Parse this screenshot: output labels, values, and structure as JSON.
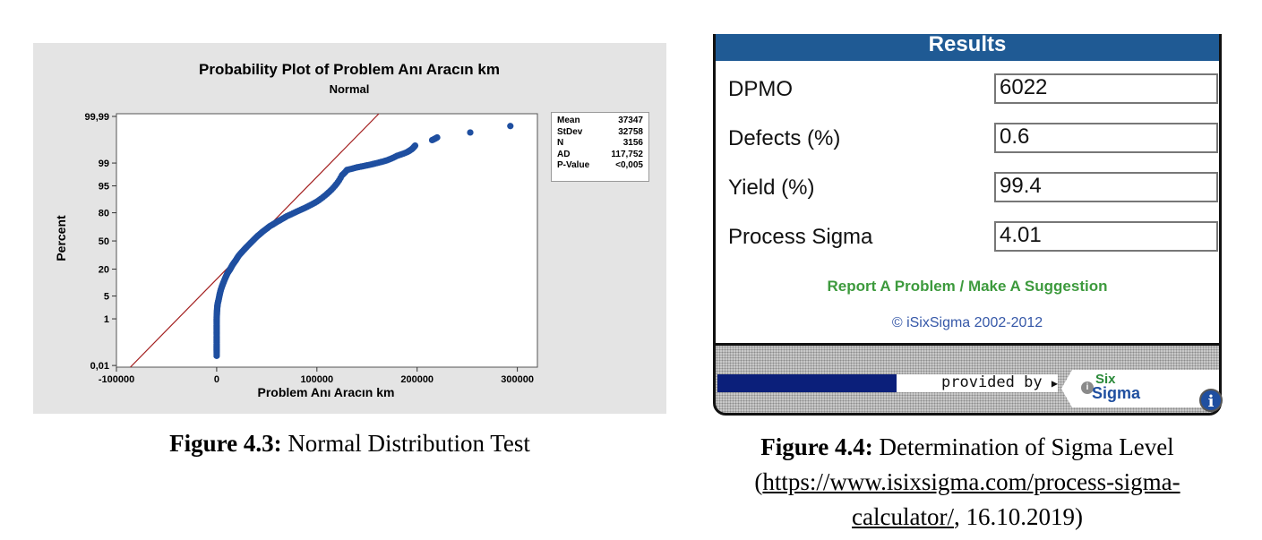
{
  "chart_data": {
    "type": "scatter",
    "title": "Probability Plot of Problem Anı Aracın km",
    "subtitle": "Normal",
    "xlabel": "Problem Anı Aracın km",
    "ylabel": "Percent",
    "xlim": [
      -100000,
      320000
    ],
    "ylim": [
      0.01,
      99.99
    ],
    "y_scale": "normal-probability",
    "x_ticks": [
      {
        "value": -100000,
        "label": "-100000"
      },
      {
        "value": 0,
        "label": "0"
      },
      {
        "value": 100000,
        "label": "100000"
      },
      {
        "value": 200000,
        "label": "200000"
      },
      {
        "value": 300000,
        "label": "300000"
      }
    ],
    "y_ticks": [
      {
        "value": 0.01,
        "label": "0,01"
      },
      {
        "value": 1,
        "label": "1"
      },
      {
        "value": 5,
        "label": "5"
      },
      {
        "value": 20,
        "label": "20"
      },
      {
        "value": 50,
        "label": "50"
      },
      {
        "value": 80,
        "label": "80"
      },
      {
        "value": 95,
        "label": "95"
      },
      {
        "value": 99,
        "label": "99"
      },
      {
        "value": 99.99,
        "label": "99,99"
      }
    ],
    "fit_line": {
      "mean": 37347,
      "stdev": 32758
    },
    "points": [
      [
        0,
        0.03
      ],
      [
        0,
        0.06
      ],
      [
        0,
        0.1
      ],
      [
        0,
        0.2
      ],
      [
        0,
        0.35
      ],
      [
        0,
        0.6
      ],
      [
        0,
        1
      ],
      [
        200,
        1.5
      ],
      [
        500,
        2.2
      ],
      [
        1000,
        3
      ],
      [
        2000,
        4
      ],
      [
        3000,
        5.5
      ],
      [
        4000,
        7
      ],
      [
        5500,
        9
      ],
      [
        7000,
        11
      ],
      [
        9000,
        14
      ],
      [
        11000,
        17
      ],
      [
        13500,
        20
      ],
      [
        16000,
        24
      ],
      [
        19000,
        28
      ],
      [
        22000,
        33
      ],
      [
        26000,
        38
      ],
      [
        30000,
        43
      ],
      [
        35000,
        49
      ],
      [
        40000,
        55
      ],
      [
        46000,
        61
      ],
      [
        53000,
        67
      ],
      [
        61000,
        72
      ],
      [
        70000,
        77
      ],
      [
        80000,
        81
      ],
      [
        90000,
        84.5
      ],
      [
        100000,
        88
      ],
      [
        110000,
        92
      ],
      [
        118000,
        95
      ],
      [
        125000,
        97.5
      ],
      [
        130000,
        98.3
      ],
      [
        140000,
        98.6
      ],
      [
        150000,
        98.8
      ],
      [
        160000,
        99.0
      ],
      [
        170000,
        99.2
      ],
      [
        180000,
        99.45
      ],
      [
        190000,
        99.6
      ],
      [
        195000,
        99.7
      ],
      [
        198000,
        99.78
      ],
      [
        215000,
        99.87
      ],
      [
        220000,
        99.9
      ],
      [
        253000,
        99.94
      ],
      [
        293000,
        99.97
      ]
    ],
    "legend_position": "right",
    "stats": [
      {
        "label": "Mean",
        "value": "37347"
      },
      {
        "label": "StDev",
        "value": "32758"
      },
      {
        "label": "N",
        "value": "3156"
      },
      {
        "label": "AD",
        "value": "117,752"
      },
      {
        "label": "P-Value",
        "value": "<0,005"
      }
    ],
    "colors": {
      "points": "#1f4fa0",
      "fit_line": "#a31f1f",
      "background": "#e4e4e4",
      "plot_area": "#ffffff"
    }
  },
  "figure_left_caption": {
    "label": "Figure 4.3:",
    "text": " Normal Distribution Test"
  },
  "calculator": {
    "header": "Results",
    "rows": [
      {
        "label": "DPMO",
        "value": "6022"
      },
      {
        "label": "Defects (%)",
        "value": "0.6"
      },
      {
        "label": "Yield (%)",
        "value": "99.4"
      },
      {
        "label": "Process Sigma",
        "value": "4.01"
      }
    ],
    "report_link": "Report A Problem / Make A Suggestion",
    "copyright": "© iSixSigma 2002-2012",
    "provided_by": "provided by",
    "logo_six": "Six",
    "logo_sigma": "Sigma",
    "logo_i": "i",
    "info_icon": "i"
  },
  "figure_right_caption": {
    "label": "Figure 4.4:",
    "text": " Determination of Sigma Level",
    "open_paren": "(",
    "link": "https://www.isixsigma.com/process-sigma-calculator/",
    "after_link": ", 16.10.2019)"
  }
}
